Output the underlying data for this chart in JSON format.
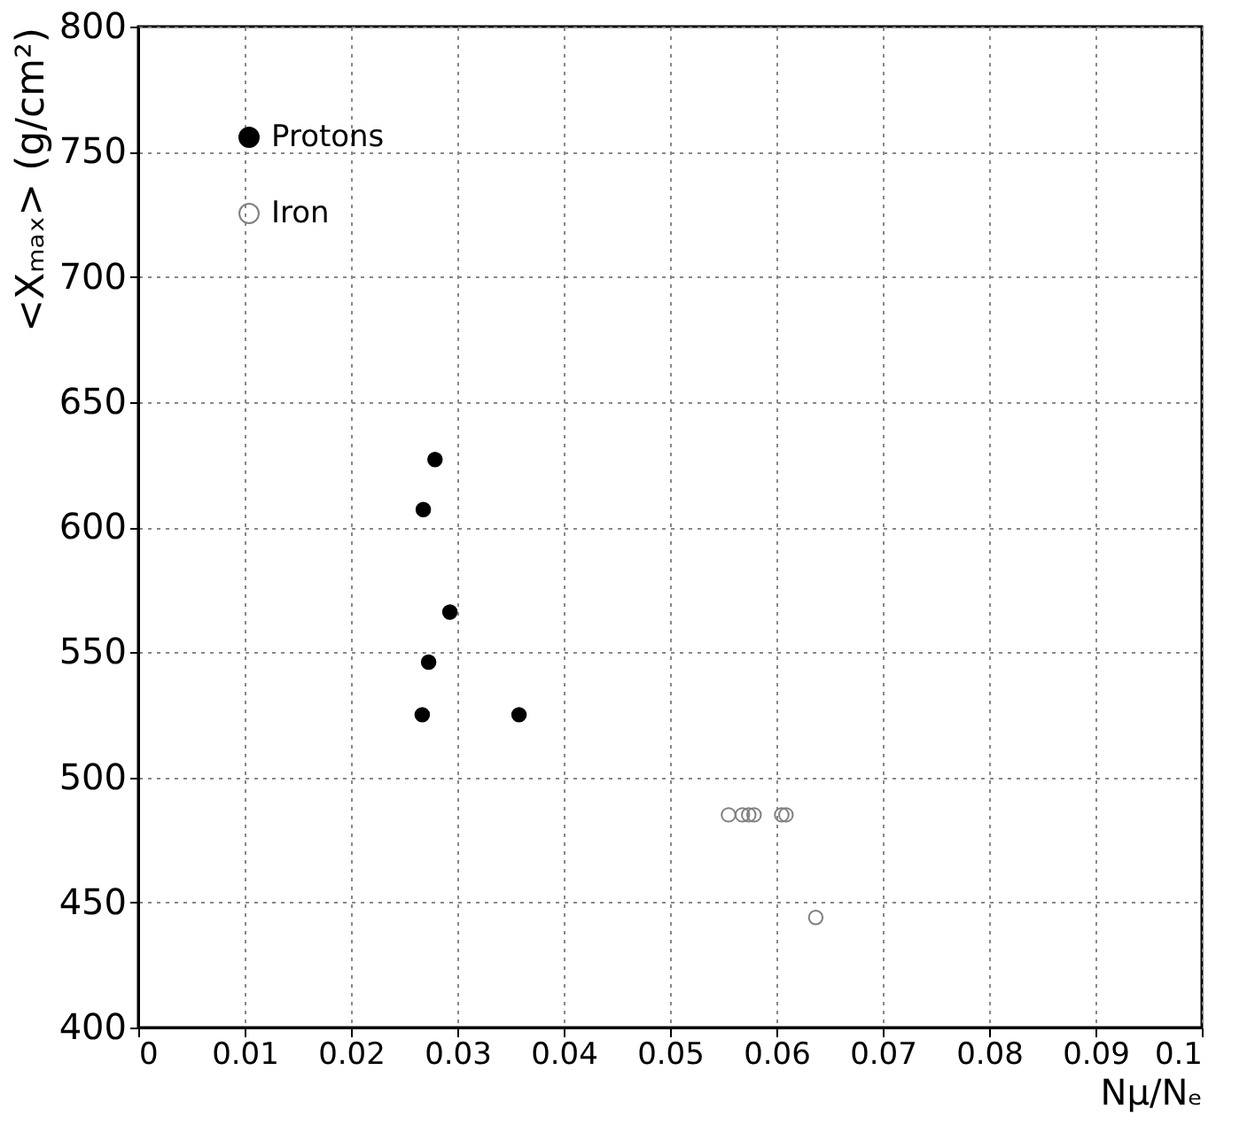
{
  "chart_data": {
    "type": "scatter",
    "xlabel": "Nμ/Nₑ",
    "ylabel": "<Xₘₐₓ> (g/cm²)",
    "xlim": [
      0,
      0.1
    ],
    "xticks": [
      0,
      0.01,
      0.02,
      0.03,
      0.04,
      0.05,
      0.06,
      0.07,
      0.08,
      0.09,
      0.1
    ],
    "ylim": [
      400,
      800
    ],
    "yticks": [
      400,
      450,
      500,
      550,
      600,
      650,
      700,
      750,
      800
    ],
    "grid": true,
    "legend": "top left",
    "marker": "circle",
    "series": [
      {
        "name": "Protons",
        "color": "#000000",
        "x": [
          0.0279,
          0.0268,
          0.0293,
          0.0273,
          0.0267,
          0.0358
        ],
        "values": [
          627,
          607,
          566,
          546,
          525,
          525
        ]
      },
      {
        "name": "Iron",
        "color": "#808080",
        "x": [
          0.0555,
          0.0568,
          0.0574,
          0.0579,
          0.0605,
          0.0609,
          0.0637
        ],
        "values": [
          485,
          485,
          485,
          485,
          485,
          485,
          444
        ]
      }
    ]
  }
}
